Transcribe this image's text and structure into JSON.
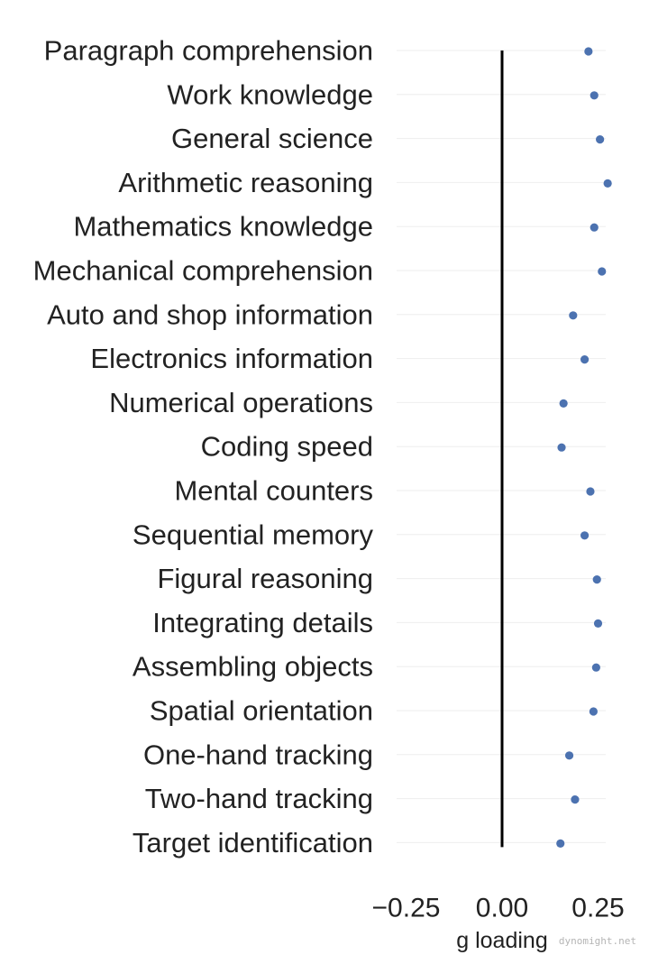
{
  "chart_data": {
    "type": "scatter",
    "orientation": "horizontal",
    "categories": [
      "Paragraph comprehension",
      "Work knowledge",
      "General science",
      "Arithmetic reasoning",
      "Mathematics knowledge",
      "Mechanical comprehension",
      "Auto and shop information",
      "Electronics information",
      "Numerical operations",
      "Coding speed",
      "Mental counters",
      "Sequential memory",
      "Figural reasoning",
      "Integrating details",
      "Assembling objects",
      "Spatial orientation",
      "One-hand tracking",
      "Two-hand tracking",
      "Target identification"
    ],
    "values": [
      0.225,
      0.24,
      0.255,
      0.275,
      0.24,
      0.26,
      0.185,
      0.215,
      0.16,
      0.155,
      0.23,
      0.215,
      0.247,
      0.25,
      0.245,
      0.238,
      0.175,
      0.19,
      0.152
    ],
    "xlabel": "g loading",
    "ylabel": "",
    "xlim": [
      -0.3,
      0.3
    ],
    "xticks": [
      -0.25,
      0.0,
      0.25
    ],
    "xtick_labels": [
      "−0.25",
      "0.00",
      "0.25"
    ],
    "reference_line_x": 0.0,
    "grid": "horizontal",
    "legend": "none",
    "point_color": "#4c72b0",
    "reference_line_color": "#000000",
    "grid_color": "#eeeeee"
  },
  "watermark": "dynomight.net"
}
